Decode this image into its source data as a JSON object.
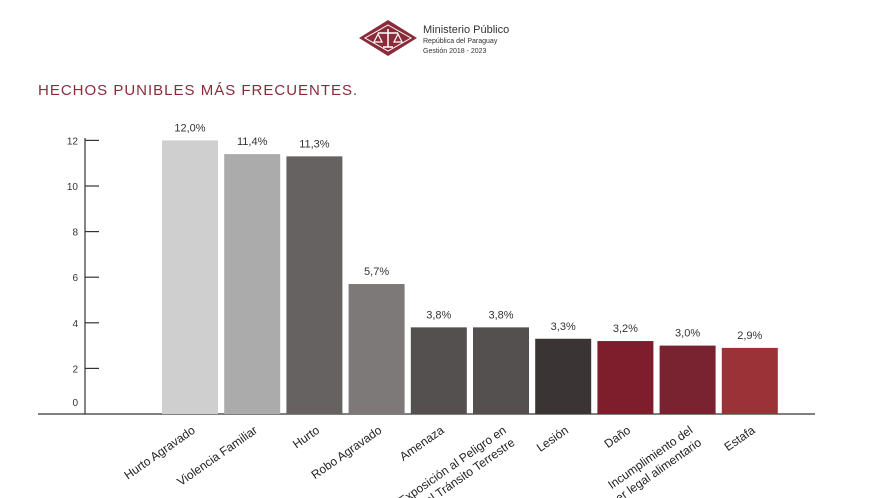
{
  "header": {
    "org_name": "Ministerio Público",
    "org_sub": "República del Paraguay",
    "org_period": "Gestión 2018 - 2023"
  },
  "colors": {
    "title": "#8a2b3a",
    "logo": "#8a2b3a"
  },
  "chart_data": {
    "type": "bar",
    "title": "HECHOS PUNIBLES MÁS FRECUENTES.",
    "xlabel": "",
    "ylabel": "",
    "ylim": [
      0,
      12
    ],
    "yticks": [
      0,
      2,
      4,
      6,
      8,
      10,
      12
    ],
    "grid": false,
    "categories": [
      "Hurto Agravado",
      "Violencia Familiar",
      "Hurto",
      "Robo Agravado",
      "Amenaza",
      "Exposición al Peligro en el Tránsito Terrestre",
      "Lesión",
      "Daño",
      "Incumplimiento del deber legal alimentario",
      "Estafa"
    ],
    "category_lines": [
      [
        "Hurto Agravado"
      ],
      [
        "Violencia Familiar"
      ],
      [
        "Hurto"
      ],
      [
        "Robo Agravado"
      ],
      [
        "Amenaza"
      ],
      [
        "Exposición al Peligro en",
        "el Tránsito Terrestre"
      ],
      [
        "Lesión"
      ],
      [
        "Daño"
      ],
      [
        "Incumplimiento del",
        "deber legal alimentario"
      ],
      [
        "Estafa"
      ]
    ],
    "values": [
      12.0,
      11.4,
      11.3,
      5.7,
      3.8,
      3.8,
      3.3,
      3.2,
      3.0,
      2.9
    ],
    "value_labels": [
      "12,0%",
      "11,4%",
      "11,3%",
      "5,7%",
      "3,8%",
      "3,8%",
      "3,3%",
      "3,2%",
      "3,0%",
      "2,9%"
    ],
    "colors": [
      "#cfcfcf",
      "#ababab",
      "#666262",
      "#7d7979",
      "#555050",
      "#555050",
      "#3a3434",
      "#7e1e2c",
      "#7a2330",
      "#9a3238"
    ]
  }
}
